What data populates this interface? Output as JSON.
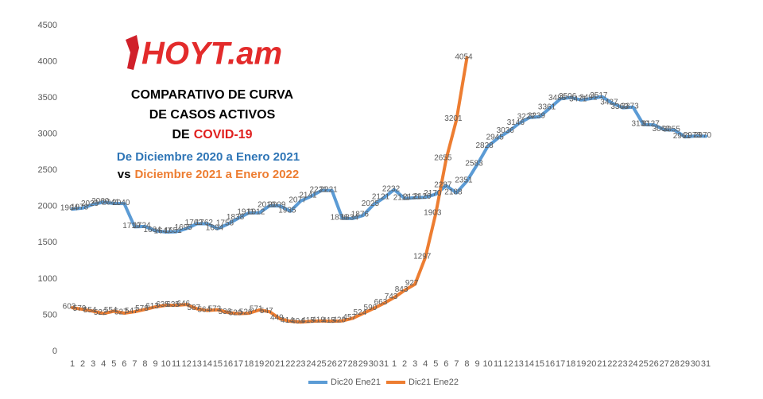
{
  "chart_data": {
    "type": "line",
    "logo": "HOYT.am",
    "title": [
      "COMPARATIVO DE CURVA",
      "DE CASOS ACTIVOS",
      "DE"
    ],
    "title_highlight": "COVID-19",
    "subtitle": "De Diciembre 2020 a Enero 2021",
    "subtitle2_prefix": "vs",
    "subtitle2": "Diciembre 2021 a Enero 2022",
    "categories": [
      "1",
      "2",
      "3",
      "4",
      "5",
      "6",
      "7",
      "8",
      "9",
      "10",
      "11",
      "12",
      "13",
      "14",
      "15",
      "16",
      "17",
      "18",
      "19",
      "20",
      "21",
      "22",
      "23",
      "24",
      "25",
      "26",
      "27",
      "28",
      "29",
      "30",
      "31",
      "1",
      "2",
      "3",
      "4",
      "5",
      "6",
      "7",
      "8",
      "9",
      "10",
      "11",
      "12",
      "13",
      "14",
      "15",
      "16",
      "17",
      "18",
      "19",
      "20",
      "21",
      "22",
      "23",
      "24",
      "25",
      "26",
      "27",
      "28",
      "29",
      "30",
      "31"
    ],
    "series": [
      {
        "name": "Dic20 Ene21",
        "color": "#5b9bd5",
        "values": [
          1964,
          1978,
          2029,
          2060,
          2041,
          2040,
          1719,
          1724,
          1664,
          1647,
          1651,
          1695,
          1762,
          1762,
          1694,
          1758,
          1838,
          1911,
          1912,
          2010,
          2009,
          1935,
          2077,
          2141,
          2221,
          2221,
          1836,
          1834,
          1876,
          2025,
          2121,
          2232,
          2111,
          2121,
          2126,
          2170,
          2287,
          2188,
          2351,
          2583,
          2828,
          2945,
          3036,
          3146,
          3227,
          3239,
          3361,
          3486,
          3506,
          3471,
          3491,
          3517,
          3427,
          3363,
          3373,
          3130,
          3127,
          3060,
          3055,
          2961,
          2973,
          2970
        ]
      },
      {
        "name": "Dic21 Ene22",
        "color": "#ed7d31",
        "values": [
          603,
          579,
          554,
          522,
          554,
          527,
          547,
          578,
          613,
          635,
          635,
          646,
          587,
          564,
          573,
          536,
          520,
          526,
          571,
          547,
          449,
          414,
          404,
          415,
          419,
          415,
          420,
          457,
          524,
          590,
          663,
          743,
          843,
          927,
          1297,
          1903,
          2655,
          3201,
          4054,
          null,
          null,
          null,
          null,
          null,
          null,
          null,
          null,
          null,
          null,
          null,
          null,
          null,
          null,
          null,
          null,
          null,
          null,
          null,
          null,
          null,
          null,
          null
        ]
      }
    ],
    "ylim": [
      0,
      4500
    ],
    "yticks": [
      0,
      500,
      1000,
      1500,
      2000,
      2500,
      3000,
      3500,
      4000,
      4500
    ],
    "grid": false,
    "legend": "bottom"
  }
}
